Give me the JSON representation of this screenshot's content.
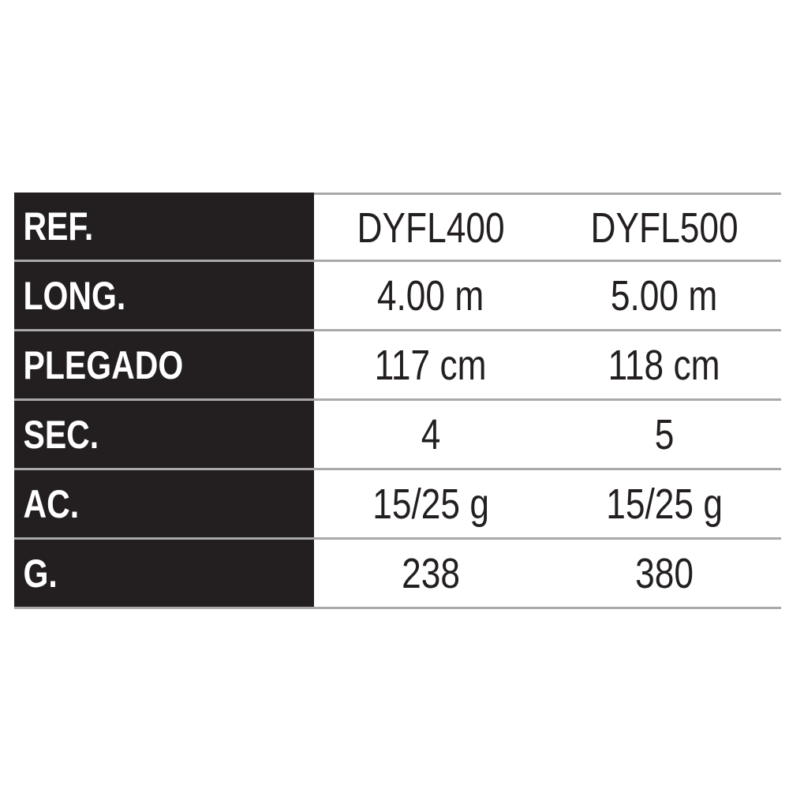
{
  "rows": [
    {
      "label": "REF.",
      "values": [
        "DYFL400",
        "DYFL500"
      ]
    },
    {
      "label": "LONG.",
      "values": [
        "4.00 m",
        "5.00 m"
      ]
    },
    {
      "label": "PLEGADO",
      "values": [
        "117 cm",
        "118 cm"
      ]
    },
    {
      "label": "SEC.",
      "values": [
        "4",
        "5"
      ]
    },
    {
      "label": "AC.",
      "values": [
        "15/25 g",
        "15/25 g"
      ]
    },
    {
      "label": "G.",
      "values": [
        "238",
        "380"
      ]
    }
  ],
  "colors": {
    "label_bg": "#231f20",
    "divider": "#a9a9a9"
  }
}
